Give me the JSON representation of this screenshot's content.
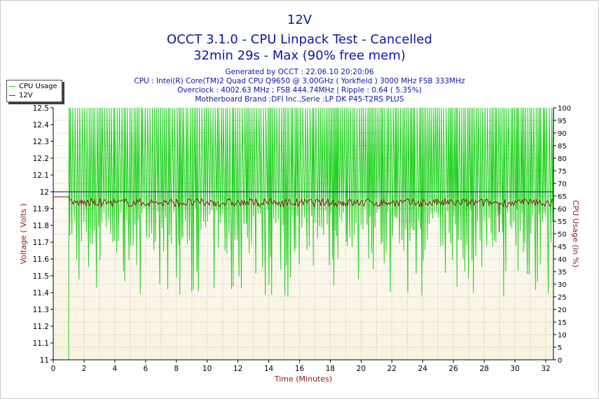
{
  "titles": {
    "title": "12V",
    "subtitle": "OCCT 3.1.0 - CPU Linpack Test - Cancelled",
    "subtitle2": "32min 29s - Max (90% free mem)"
  },
  "info": [
    "Generated by OCCT : 22.06.10 20:20:06",
    "CPU : Intel(R) Core(TM)2 Quad CPU Q9650 @ 3.00GHz ( Yorkfield ) 3000 MHz FSB 333MHz",
    "Overclock : 4002.63 MHz ; FSB 444.74MHz | Ripple : 0.64 ( 5.35%)",
    "Motherboard Brand :DFI Inc.,Serie :LP DK P45-T2RS PLUS"
  ],
  "legend": [
    {
      "label": "CPU Usage",
      "color": "#1fd21f"
    },
    {
      "label": "12V",
      "color": "#8b1a1a"
    }
  ],
  "colors": {
    "plot_top": "#ffffff",
    "plot_bottom": "#faf2df",
    "grid": "#b8b8b8",
    "cpu": "#1fd21f",
    "volt": "#8b1a1a",
    "ref": "#1e3f9c",
    "title": "#0a16a8",
    "axis_label": "#8b1a1a"
  },
  "chart_data": {
    "type": "line",
    "title": "12V",
    "xlabel": "Time (Minutes)",
    "ylabel": "Voltage ( Volts )",
    "y2label": "CPU Usage (in %)",
    "xlim": [
      0,
      32.5
    ],
    "ylim": [
      11,
      12.5
    ],
    "y2lim": [
      0,
      100
    ],
    "grid": true,
    "legend_position": "top-left",
    "x_ticks": [
      "0",
      "2",
      "4",
      "6",
      "8",
      "10",
      "12",
      "14",
      "16",
      "18",
      "20",
      "22",
      "24",
      "26",
      "28",
      "30",
      "32"
    ],
    "y_ticks": [
      "11",
      "11.1",
      "11.2",
      "11.3",
      "11.4",
      "11.5",
      "11.6",
      "11.7",
      "11.8",
      "11.9",
      "12",
      "12.1",
      "12.2",
      "12.3",
      "12.4",
      "12.5"
    ],
    "y2_ticks": [
      "0",
      "5",
      "10",
      "15",
      "20",
      "25",
      "30",
      "35",
      "40",
      "45",
      "50",
      "55",
      "60",
      "65",
      "70",
      "75",
      "80",
      "85",
      "90",
      "95",
      "100"
    ],
    "reference_line": {
      "y": 12.0
    },
    "series": [
      {
        "name": "CPU Usage",
        "axis": "right",
        "baseline_before_start": 0,
        "start_minute": 1.0,
        "range": [
          25,
          100
        ],
        "typical_low": [
          45,
          60
        ],
        "typical_high": 100
      },
      {
        "name": "12V",
        "axis": "left",
        "idle_value": 11.97,
        "load_range": [
          11.91,
          11.96
        ],
        "min_dip": 11.76
      }
    ]
  }
}
